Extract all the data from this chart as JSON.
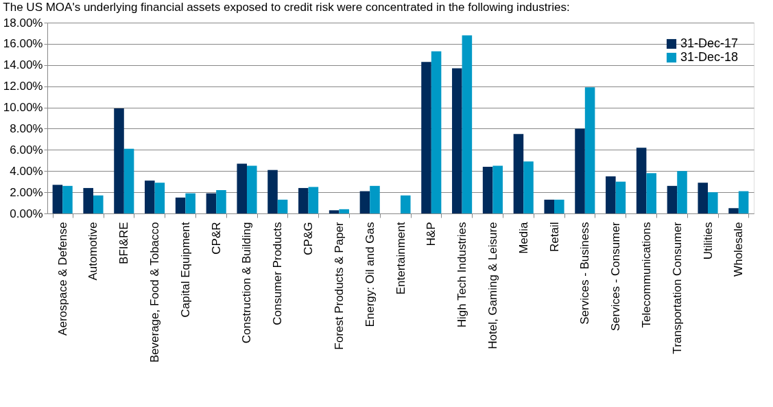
{
  "chart_data": {
    "type": "bar",
    "title": "The US MOA's underlying financial assets exposed to credit risk were concentrated in the following industries:",
    "categories": [
      "Aerospace & Defense",
      "Automotive",
      "BFI&RE",
      "Beverage, Food & Tobacco",
      "Capital Equipment",
      "CP&R",
      "Construction & Building",
      "Consumer Products",
      "CP&G",
      "Forest Products & Paper",
      "Energy: Oil and Gas",
      "Entertainment",
      "H&P",
      "High Tech Industries",
      "Hotel, Gaming & Leisure",
      "Media",
      "Retail",
      "Services - Business",
      "Services - Consumer",
      "Telecommunications",
      "Transportation Consumer",
      "Utilities",
      "Wholesale"
    ],
    "series": [
      {
        "name": "31-Dec-17",
        "color": "#002b5c",
        "values": [
          2.7,
          2.4,
          9.9,
          3.1,
          1.5,
          1.9,
          4.7,
          4.1,
          2.4,
          0.3,
          2.1,
          null,
          14.3,
          13.7,
          4.4,
          7.5,
          1.3,
          8.0,
          3.5,
          6.2,
          2.6,
          2.9,
          0.5
        ]
      },
      {
        "name": "31-Dec-18",
        "color": "#0099c6",
        "values": [
          2.6,
          1.7,
          6.1,
          2.9,
          1.9,
          2.2,
          4.5,
          1.3,
          2.5,
          0.4,
          2.6,
          1.7,
          15.3,
          16.8,
          4.5,
          4.9,
          1.3,
          11.9,
          3.0,
          3.8,
          4.0,
          2.0,
          2.1
        ]
      }
    ],
    "ylim": [
      0,
      18
    ],
    "yticks": [
      {
        "value": 0,
        "label": "0.00%"
      },
      {
        "value": 2,
        "label": "2.00%"
      },
      {
        "value": 4,
        "label": "4.00%"
      },
      {
        "value": 6,
        "label": "6.00%"
      },
      {
        "value": 8,
        "label": "8.00%"
      },
      {
        "value": 10,
        "label": "10.00%"
      },
      {
        "value": 12,
        "label": "12.00%"
      },
      {
        "value": 14,
        "label": "14.00%"
      },
      {
        "value": 16,
        "label": "16.00%"
      },
      {
        "value": 18,
        "label": "18.00%"
      }
    ],
    "grid": "y",
    "legend": "top right"
  }
}
